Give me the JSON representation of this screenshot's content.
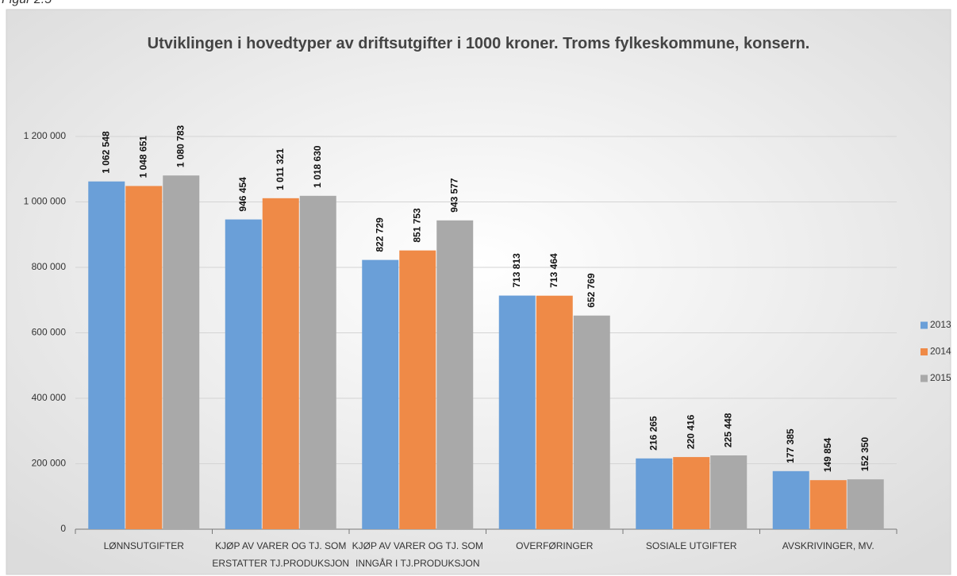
{
  "figure_label": "Figur 2.5",
  "chart_data": {
    "type": "bar",
    "title": "Utviklingen i hovedtyper av driftsutgifter i 1000 kroner. Troms fylkeskommune, konsern.",
    "categories": [
      "LØNNSUTGIFTER",
      "KJØP AV VARER OG TJ. SOM\nERSTATTER TJ.PRODUKSJON",
      "KJØP AV VARER OG TJ. SOM\nINNGÅR I TJ.PRODUKSJON",
      "OVERFØRINGER",
      "SOSIALE UTGIFTER",
      "AVSKRIVINGER, MV."
    ],
    "series": [
      {
        "name": "2013",
        "color": "#6a9fd8",
        "values": [
          1062548,
          946454,
          822729,
          713813,
          216265,
          177385
        ],
        "value_labels": [
          "1 062 548",
          "946 454",
          "822 729",
          "713 813",
          "216 265",
          "177 385"
        ]
      },
      {
        "name": "2014",
        "color": "#ef8a47",
        "values": [
          1048651,
          1011321,
          851753,
          713464,
          220416,
          149854
        ],
        "value_labels": [
          "1 048 651",
          "1 011 321",
          "851 753",
          "713 464",
          "220 416",
          "149 854"
        ]
      },
      {
        "name": "2015",
        "color": "#a9a9a9",
        "values": [
          1080783,
          1018630,
          943577,
          652769,
          225448,
          152350
        ],
        "value_labels": [
          "1 080 783",
          "1 018 630",
          "943 577",
          "652 769",
          "225 448",
          "152 350"
        ]
      }
    ],
    "ylim": [
      0,
      1200000
    ],
    "yticks": [
      0,
      {
        "value": 200000,
        "label": "200 000"
      },
      {
        "value": 400000,
        "label": "400 000"
      },
      {
        "value": 600000,
        "label": "600 000"
      },
      {
        "value": 800000,
        "label": "800 000"
      },
      {
        "value": 1000000,
        "label": "1 000 000"
      },
      {
        "value": 1200000,
        "label": "1 200 000"
      }
    ],
    "grid": true,
    "legend": "right"
  }
}
